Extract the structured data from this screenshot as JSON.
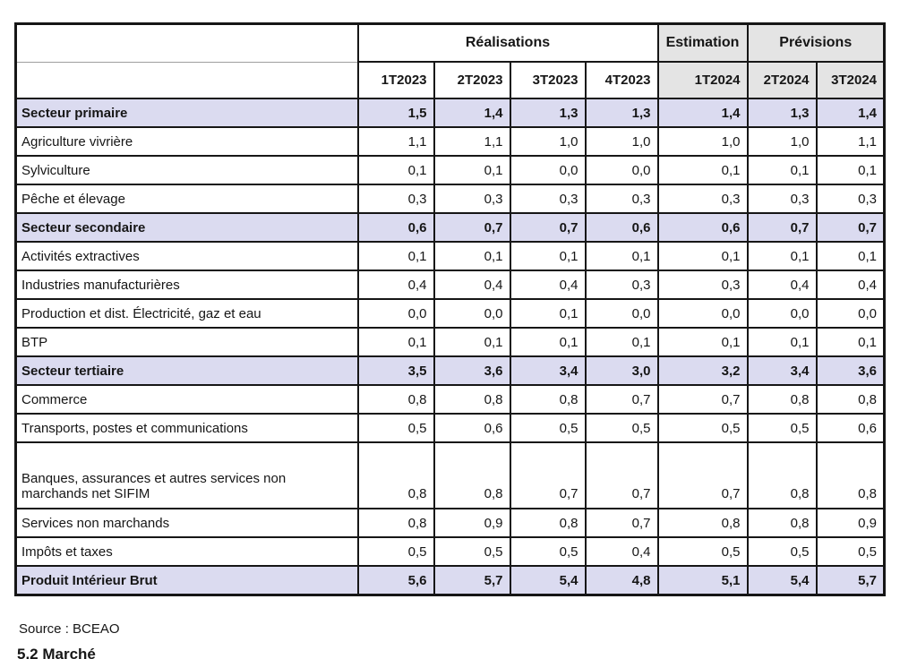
{
  "table": {
    "col_groups": [
      {
        "label": "Réalisations",
        "span": 4
      },
      {
        "label": "Estimation",
        "span": 1
      },
      {
        "label": "Prévisions",
        "span": 2
      }
    ],
    "columns": [
      "1T2023",
      "2T2023",
      "3T2023",
      "4T2023",
      "1T2024",
      "2T2024",
      "3T2024"
    ],
    "rows": [
      {
        "label": "Secteur primaire",
        "section": true,
        "tall": false,
        "values": [
          "1,5",
          "1,4",
          "1,3",
          "1,3",
          "1,4",
          "1,3",
          "1,4"
        ]
      },
      {
        "label": "Agriculture vivrière",
        "section": false,
        "tall": false,
        "values": [
          "1,1",
          "1,1",
          "1,0",
          "1,0",
          "1,0",
          "1,0",
          "1,1"
        ]
      },
      {
        "label": "Sylviculture",
        "section": false,
        "tall": false,
        "values": [
          "0,1",
          "0,1",
          "0,0",
          "0,0",
          "0,1",
          "0,1",
          "0,1"
        ]
      },
      {
        "label": "Pêche et élevage",
        "section": false,
        "tall": false,
        "values": [
          "0,3",
          "0,3",
          "0,3",
          "0,3",
          "0,3",
          "0,3",
          "0,3"
        ]
      },
      {
        "label": "Secteur secondaire",
        "section": true,
        "tall": false,
        "values": [
          "0,6",
          "0,7",
          "0,7",
          "0,6",
          "0,6",
          "0,7",
          "0,7"
        ]
      },
      {
        "label": "Activités extractives",
        "section": false,
        "tall": false,
        "values": [
          "0,1",
          "0,1",
          "0,1",
          "0,1",
          "0,1",
          "0,1",
          "0,1"
        ]
      },
      {
        "label": "Industries manufacturières",
        "section": false,
        "tall": false,
        "values": [
          "0,4",
          "0,4",
          "0,4",
          "0,3",
          "0,3",
          "0,4",
          "0,4"
        ]
      },
      {
        "label": "Production et dist. Électricité, gaz et eau",
        "section": false,
        "tall": false,
        "values": [
          "0,0",
          "0,0",
          "0,1",
          "0,0",
          "0,0",
          "0,0",
          "0,0"
        ]
      },
      {
        "label": "BTP",
        "section": false,
        "tall": false,
        "values": [
          "0,1",
          "0,1",
          "0,1",
          "0,1",
          "0,1",
          "0,1",
          "0,1"
        ]
      },
      {
        "label": "Secteur tertiaire",
        "section": true,
        "tall": false,
        "values": [
          "3,5",
          "3,6",
          "3,4",
          "3,0",
          "3,2",
          "3,4",
          "3,6"
        ]
      },
      {
        "label": "Commerce",
        "section": false,
        "tall": false,
        "values": [
          "0,8",
          "0,8",
          "0,8",
          "0,7",
          "0,7",
          "0,8",
          "0,8"
        ]
      },
      {
        "label": "Transports, postes et communications",
        "section": false,
        "tall": false,
        "values": [
          "0,5",
          "0,6",
          "0,5",
          "0,5",
          "0,5",
          "0,5",
          "0,6"
        ]
      },
      {
        "label": "Banques, assurances et autres services non marchands net SIFIM",
        "section": false,
        "tall": true,
        "values": [
          "0,8",
          "0,8",
          "0,7",
          "0,7",
          "0,7",
          "0,8",
          "0,8"
        ]
      },
      {
        "label": "Services non marchands",
        "section": false,
        "tall": false,
        "values": [
          "0,8",
          "0,9",
          "0,8",
          "0,7",
          "0,8",
          "0,8",
          "0,9"
        ]
      },
      {
        "label": "Impôts et taxes",
        "section": false,
        "tall": false,
        "values": [
          "0,5",
          "0,5",
          "0,5",
          "0,4",
          "0,5",
          "0,5",
          "0,5"
        ]
      },
      {
        "label": "Produit Intérieur Brut",
        "section": true,
        "tall": false,
        "values": [
          "5,6",
          "5,7",
          "5,4",
          "4,8",
          "5,1",
          "5,4",
          "5,7"
        ]
      }
    ]
  },
  "source": "Source : BCEAO",
  "clipped_heading": "5.2 Marché",
  "colors": {
    "section_row_bg": "#dbdbf0",
    "header_gray_bg": "#e4e4e4",
    "border": "#161616",
    "page_bg": "#ffffff"
  }
}
